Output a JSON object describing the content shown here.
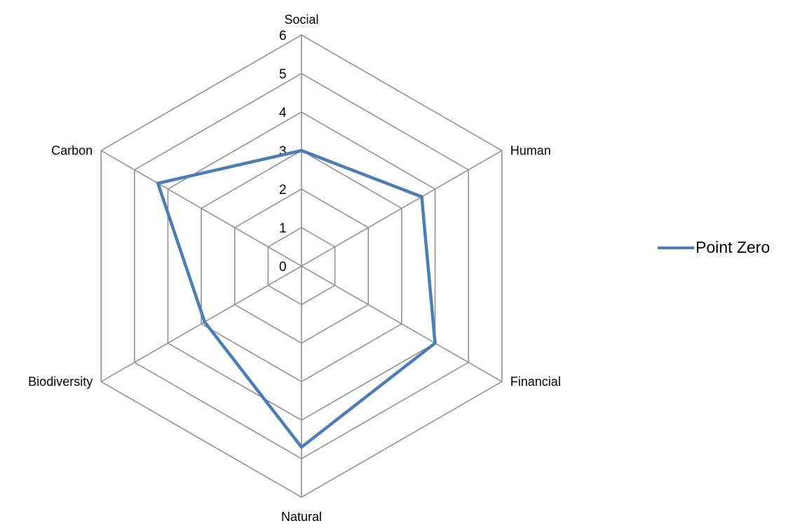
{
  "chart_data": {
    "type": "radar",
    "categories": [
      "Social",
      "Human",
      "Financial",
      "Natural",
      "Biodiversity",
      "Carbon"
    ],
    "series": [
      {
        "name": "Point Zero",
        "values": [
          3,
          3.6,
          4,
          4.7,
          2.9,
          4.3
        ],
        "color": "#4a7ebb"
      }
    ],
    "rlim": [
      0,
      6
    ],
    "ticks": [
      0,
      1,
      2,
      3,
      4,
      5,
      6
    ],
    "grid": true,
    "legend": "right"
  }
}
